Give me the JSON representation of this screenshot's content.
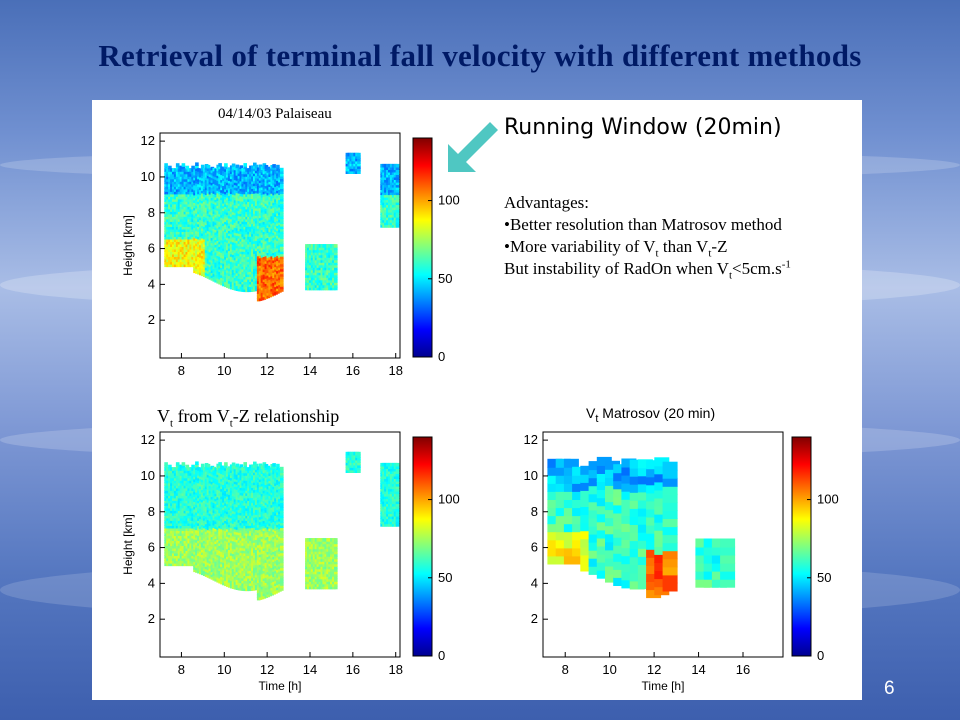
{
  "slide": {
    "title": "Retrieval of terminal fall velocity with different methods",
    "page_number": "6"
  },
  "top_plot": {
    "date_label": "04/14/03 Palaiseau",
    "ylabel": "Height [km]",
    "yticks": [
      "2",
      "4",
      "6",
      "8",
      "10",
      "12"
    ],
    "xticks": [
      "8",
      "10",
      "12",
      "14",
      "16",
      "18"
    ],
    "cbar_ticks": [
      "0",
      "50",
      "100"
    ]
  },
  "bottom_left_plot": {
    "title_parts": [
      "V",
      "t",
      " from V",
      "t",
      "-Z relationship"
    ],
    "xlabel": "Time [h]",
    "ylabel": "Height [km]",
    "yticks": [
      "2",
      "4",
      "6",
      "8",
      "10",
      "12"
    ],
    "xticks": [
      "8",
      "10",
      "12",
      "14",
      "16",
      "18"
    ],
    "cbar_ticks": [
      "0",
      "50",
      "100"
    ]
  },
  "bottom_right_plot": {
    "title_parts": [
      "V",
      "t",
      " Matrosov (20 min)"
    ],
    "xlabel": "Time [h]",
    "yticks": [
      "2",
      "4",
      "6",
      "8",
      "10",
      "12"
    ],
    "xticks": [
      "8",
      "10",
      "12",
      "14",
      "16"
    ],
    "cbar_ticks": [
      "0",
      "50",
      "100"
    ]
  },
  "annotation": {
    "heading": "Running Window (20min)",
    "arrow_color": "#4fc7c2",
    "advantages_label": "Advantages:",
    "bullet1": "•Better resolution than Matrosov method",
    "bullet2_parts": [
      "•More variability of V",
      "t",
      " than V",
      "t",
      "-Z"
    ],
    "line3_parts": [
      "But instability of RadOn when V",
      "t",
      "<5cm.s",
      "-1"
    ]
  },
  "colors": {
    "title": "#001a66",
    "background": "#6f8fd0",
    "panel": "#ffffff"
  }
}
